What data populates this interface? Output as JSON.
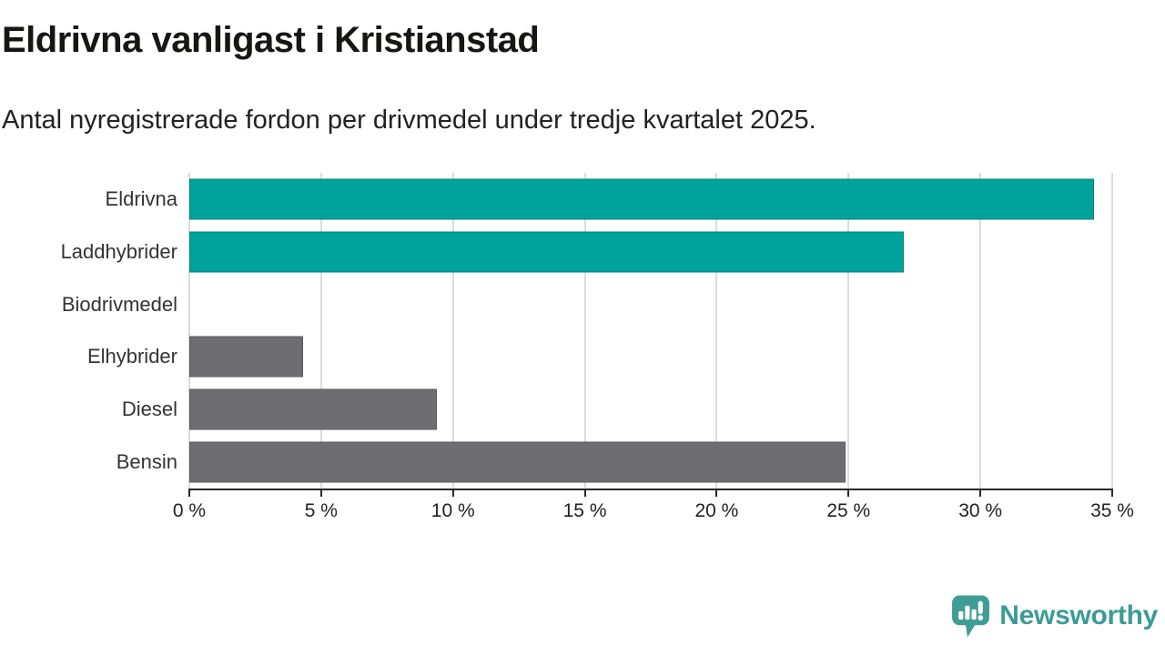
{
  "header": {
    "title": "Eldrivna vanligast i Kristianstad",
    "subtitle": "Antal nyregistrerade fordon per drivmedel under tredje kvartalet 2025."
  },
  "chart_data": {
    "type": "bar",
    "orientation": "horizontal",
    "title": "Eldrivna vanligast i Kristianstad",
    "subtitle": "Antal nyregistrerade fordon per drivmedel under tredje kvartalet 2025.",
    "categories": [
      "Eldrivna",
      "Laddhybrider",
      "Biodrivmedel",
      "Elhybrider",
      "Diesel",
      "Bensin"
    ],
    "values": [
      34.3,
      27.1,
      0,
      4.3,
      9.4,
      24.9
    ],
    "unit": "%",
    "bar_colors": [
      "#00a39b",
      "#00a39b",
      "#00a39b",
      "#6e6d72",
      "#6e6d72",
      "#6e6d72"
    ],
    "highlight_color": "#00a39b",
    "default_color": "#6e6d72",
    "xlim": [
      0,
      35
    ],
    "x_ticks": [
      0,
      5,
      10,
      15,
      20,
      25,
      30,
      35
    ],
    "x_tick_labels": [
      "0 %",
      "5 %",
      "10 %",
      "15 %",
      "20 %",
      "25 %",
      "30 %",
      "35 %"
    ],
    "grid": "vertical",
    "gridline_color": "#dcdcdc",
    "axis_color": "#28282a",
    "legend": false
  },
  "footer": {
    "brand": "Newsworthy",
    "brand_color": "#3b9c95",
    "logo_icon": "newsworthy-speech-bubble-chart-icon"
  }
}
